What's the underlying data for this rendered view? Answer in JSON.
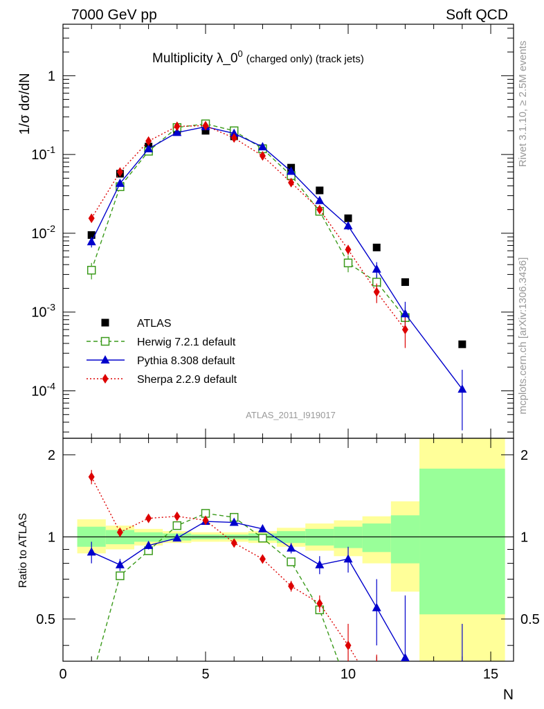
{
  "header": {
    "left": "7000 GeV pp",
    "right": "Soft QCD"
  },
  "side_labels": {
    "rivet": "Rivet 3.1.10, ≥ 2.5M events",
    "mcplots": "mcplots.cern.ch [arXiv:1306.3436]"
  },
  "chart_data": {
    "type": "scatter",
    "title_main": "Multiplicity λ_0",
    "title_sup": "0",
    "title_tail": "(charged only) (track jets)",
    "analysis_id": "ATLAS_2011_I919017",
    "ylabel": "1/σ dσ/dN",
    "ratio_ylabel": "Ratio to ATLAS",
    "xlabel": "N",
    "xlim": [
      0,
      15.8
    ],
    "ylim": [
      2.5e-05,
      4.5
    ],
    "y_log": true,
    "ratio_ylim": [
      0.35,
      2.3
    ],
    "x_ticks": [
      "0",
      "5",
      "10",
      "15"
    ],
    "y_ticks": [
      "10^-4",
      "10^-3",
      "10^-2",
      "10^-1",
      "1"
    ],
    "ratio_ticks": [
      "0.5",
      "1",
      "2"
    ],
    "legend_position": "bottom-left",
    "series": [
      {
        "name": "ATLAS",
        "color": "#000000",
        "marker": "square",
        "x": [
          1,
          2,
          3,
          4,
          5,
          6,
          7,
          8,
          9,
          10,
          11,
          12,
          14
        ],
        "y": [
          0.0095,
          0.057,
          0.126,
          0.2,
          0.2,
          0.17,
          0.12,
          0.068,
          0.035,
          0.0155,
          0.0066,
          0.0024,
          0.00039
        ]
      },
      {
        "name": "Herwig 7.2.1 default",
        "color": "#3a9a1a",
        "marker": "open-square",
        "dash": "dashed",
        "x": [
          1,
          2,
          3,
          4,
          5,
          6,
          7,
          8,
          9,
          10,
          11,
          12
        ],
        "y": [
          0.0034,
          0.039,
          0.11,
          0.22,
          0.245,
          0.2,
          0.118,
          0.054,
          0.019,
          0.0042,
          0.0024,
          0.00085
        ],
        "err": [
          0.0008,
          0.003,
          0.006,
          0.008,
          0.008,
          0.008,
          0.006,
          0.004,
          0.002,
          0.001,
          0.0006,
          0.0003
        ],
        "ratio": [
          0.3,
          0.72,
          0.89,
          1.1,
          1.22,
          1.18,
          0.99,
          0.81,
          0.54,
          0.28,
          0.0,
          0.0
        ]
      },
      {
        "name": "Pythia 8.308 default",
        "color": "#0000cc",
        "marker": "triangle",
        "dash": "solid",
        "x": [
          1,
          2,
          3,
          4,
          5,
          6,
          7,
          8,
          9,
          10,
          11,
          12,
          14
        ],
        "y": [
          0.0078,
          0.043,
          0.118,
          0.19,
          0.225,
          0.185,
          0.125,
          0.061,
          0.026,
          0.0124,
          0.0035,
          0.00095,
          0.000105
        ],
        "err": [
          0.0012,
          0.003,
          0.006,
          0.008,
          0.008,
          0.007,
          0.006,
          0.004,
          0.002,
          0.0014,
          0.0008,
          0.0004,
          8e-05
        ],
        "ratio": [
          0.88,
          0.79,
          0.93,
          0.99,
          1.14,
          1.13,
          1.07,
          0.91,
          0.79,
          0.83,
          0.55,
          0.36,
          0.18
        ],
        "ratio_err": [
          0.08,
          0.04,
          0.03,
          0.02,
          0.02,
          0.02,
          0.03,
          0.04,
          0.06,
          0.09,
          0.15,
          0.25,
          0.3
        ]
      },
      {
        "name": "Sherpa 2.2.9 default",
        "color": "#dd0000",
        "marker": "diamond",
        "dash": "dotted",
        "x": [
          1,
          2,
          3,
          4,
          5,
          6,
          7,
          8,
          9,
          10,
          11,
          12
        ],
        "y": [
          0.0155,
          0.06,
          0.148,
          0.228,
          0.232,
          0.162,
          0.096,
          0.044,
          0.02,
          0.0062,
          0.0018,
          0.0006
        ],
        "err": [
          0.0015,
          0.004,
          0.007,
          0.009,
          0.009,
          0.007,
          0.006,
          0.004,
          0.002,
          0.0009,
          0.0005,
          0.00025
        ],
        "ratio": [
          1.66,
          1.04,
          1.17,
          1.19,
          1.15,
          0.95,
          0.83,
          0.66,
          0.57,
          0.4,
          0.27,
          0.0
        ],
        "ratio_err": [
          0.1,
          0.04,
          0.03,
          0.02,
          0.02,
          0.02,
          0.03,
          0.03,
          0.04,
          0.08,
          0.1,
          0.1
        ]
      }
    ],
    "ratio_band": {
      "edges": [
        0.5,
        1.5,
        2.5,
        3.5,
        4.5,
        5.5,
        6.5,
        7.5,
        8.5,
        9.5,
        10.5,
        11.5,
        12.5,
        15.5
      ],
      "inner": [
        [
          0.92,
          1.09
        ],
        [
          0.94,
          1.06
        ],
        [
          0.96,
          1.04
        ],
        [
          0.97,
          1.03
        ],
        [
          0.98,
          1.02
        ],
        [
          0.98,
          1.02
        ],
        [
          0.97,
          1.03
        ],
        [
          0.95,
          1.05
        ],
        [
          0.93,
          1.07
        ],
        [
          0.91,
          1.09
        ],
        [
          0.88,
          1.12
        ],
        [
          0.8,
          1.2
        ],
        [
          0.52,
          1.78
        ]
      ],
      "outer": [
        [
          0.87,
          1.16
        ],
        [
          0.9,
          1.1
        ],
        [
          0.93,
          1.07
        ],
        [
          0.95,
          1.05
        ],
        [
          0.96,
          1.04
        ],
        [
          0.96,
          1.04
        ],
        [
          0.95,
          1.05
        ],
        [
          0.92,
          1.08
        ],
        [
          0.89,
          1.12
        ],
        [
          0.85,
          1.15
        ],
        [
          0.8,
          1.19
        ],
        [
          0.63,
          1.35
        ],
        [
          0.33,
          2.3
        ]
      ],
      "inner_color": "#99ff99",
      "outer_color": "#ffff99"
    }
  }
}
